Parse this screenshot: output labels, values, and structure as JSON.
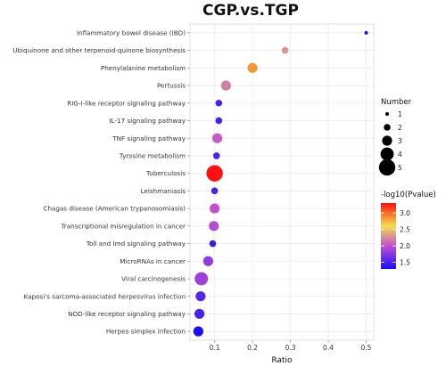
{
  "chart_data": {
    "type": "scatter",
    "title": "CGP.vs.TGP",
    "xlabel": "Ratio",
    "ylabel": "",
    "xlim": [
      0.035,
      0.52
    ],
    "xticks": [
      "0.1",
      "0.2",
      "0.3",
      "0.4",
      "0.5"
    ],
    "xtick_values": [
      0.1,
      0.2,
      0.3,
      0.4,
      0.5
    ],
    "grid": true,
    "points": [
      {
        "category": "Inflammatory bowel disease (IBD)",
        "ratio": 0.5,
        "number": 1,
        "log10p": 1.3
      },
      {
        "category": "Ubiquinone and other terpenoid-quinone biosynthesis",
        "ratio": 0.286,
        "number": 2,
        "log10p": 2.3
      },
      {
        "category": "Phenylalanine metabolism",
        "ratio": 0.2,
        "number": 3,
        "log10p": 2.85
      },
      {
        "category": "Pertussis",
        "ratio": 0.13,
        "number": 3,
        "log10p": 2.2
      },
      {
        "category": "RIG-I-like receptor signaling pathway",
        "ratio": 0.111,
        "number": 2,
        "log10p": 1.5
      },
      {
        "category": "IL-17 signaling pathway",
        "ratio": 0.111,
        "number": 2,
        "log10p": 1.5
      },
      {
        "category": "TNF signaling pathway",
        "ratio": 0.107,
        "number": 3,
        "log10p": 2.05
      },
      {
        "category": "Tyrosine metabolism",
        "ratio": 0.105,
        "number": 2,
        "log10p": 1.5
      },
      {
        "category": "Tuberculosis",
        "ratio": 0.1,
        "number": 5,
        "log10p": 3.3
      },
      {
        "category": "Leishmaniasis",
        "ratio": 0.1,
        "number": 2,
        "log10p": 1.5
      },
      {
        "category": "Chagas disease (American trypanosomiasis)",
        "ratio": 0.1,
        "number": 3,
        "log10p": 2.0
      },
      {
        "category": "Transcriptional misregulation in cancer",
        "ratio": 0.098,
        "number": 3,
        "log10p": 1.95
      },
      {
        "category": "Toll and Imd signaling pathway",
        "ratio": 0.095,
        "number": 2,
        "log10p": 1.45
      },
      {
        "category": "MicroRNAs in cancer",
        "ratio": 0.083,
        "number": 3,
        "log10p": 1.8
      },
      {
        "category": "Viral carcinogenesis",
        "ratio": 0.065,
        "number": 4,
        "log10p": 1.85
      },
      {
        "category": "Kaposi's sarcoma-associated herpesvirus infection",
        "ratio": 0.063,
        "number": 3,
        "log10p": 1.55
      },
      {
        "category": "NOD-like receptor signaling pathway",
        "ratio": 0.06,
        "number": 3,
        "log10p": 1.5
      },
      {
        "category": "Herpes simplex infection",
        "ratio": 0.057,
        "number": 3,
        "log10p": 1.3
      }
    ],
    "size_legend": {
      "title": "Number",
      "labels": [
        "1",
        "2",
        "3",
        "4",
        "5"
      ],
      "values": [
        1,
        2,
        3,
        4,
        5
      ]
    },
    "color_legend": {
      "title": "-log10(Pvalue)",
      "labels": [
        "3.0",
        "2.5",
        "2.0",
        "1.5"
      ],
      "values": [
        3.0,
        2.5,
        2.0,
        1.5
      ],
      "range": [
        1.3,
        3.3
      ],
      "colors": [
        "#1a0dff",
        "#c14fd0",
        "#f1e04b",
        "#ff1010"
      ]
    }
  }
}
